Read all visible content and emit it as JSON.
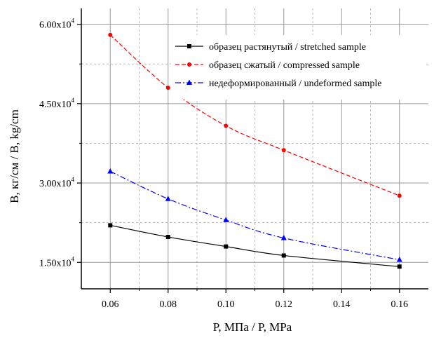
{
  "chart_data": {
    "type": "line",
    "title": "",
    "xlabel": "P, МПа  /  P, MPa",
    "ylabel": "B, кг/см  /  B, kg/cm",
    "x": [
      0.06,
      0.08,
      0.1,
      0.12,
      0.16
    ],
    "xlim": [
      0.05,
      0.17
    ],
    "ylim": [
      10000,
      63000
    ],
    "x_ticks": [
      "0.06",
      "0.08",
      "0.10",
      "0.12",
      "0.14",
      "0.16"
    ],
    "y_ticks": [
      {
        "value": 60000,
        "mantissa": "6.00x10",
        "exp": "4"
      },
      {
        "value": 45000,
        "mantissa": "4.50x10",
        "exp": "4"
      },
      {
        "value": 30000,
        "mantissa": "3.00x10",
        "exp": "4"
      },
      {
        "value": 15000,
        "mantissa": "1.50x10",
        "exp": "4"
      }
    ],
    "grid": true,
    "legend_position": "top-right",
    "series": [
      {
        "name": "образец растянутый / stretched sample",
        "color": "#000000",
        "line_style": "solid",
        "marker": "square",
        "values": [
          22000,
          19800,
          18000,
          16300,
          14200
        ]
      },
      {
        "name": "образец сжатый  / compressed sample",
        "color": "#ff0000",
        "line_style": "dashed",
        "marker": "circle",
        "values": [
          58000,
          48000,
          40800,
          36200,
          27600
        ]
      },
      {
        "name": "недеформированный / undeformed sample",
        "color": "#0000ff",
        "line_style": "dash-dot",
        "marker": "triangle",
        "values": [
          32200,
          27000,
          23000,
          19600,
          15500
        ]
      }
    ]
  }
}
